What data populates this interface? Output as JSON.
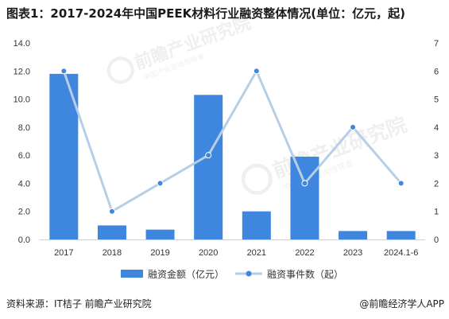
{
  "title": "图表1：2017-2024年中国PEEK材料行业融资整体情况(单位：亿元，起)",
  "source": "资料来源：IT桔子 前瞻产业研究院",
  "brand": "@前瞻经济学人APP",
  "watermark": {
    "name": "前瞻产业研究院",
    "sub": "中国产业咨询领导者"
  },
  "colors": {
    "bar": "#3f86de",
    "line": "#b6cfe6",
    "marker": "#3f86de",
    "axis_text": "#333333"
  },
  "chart_data": {
    "type": "bar",
    "categories": [
      "2017",
      "2018",
      "2019",
      "2020",
      "2021",
      "2022",
      "2023",
      "2024.1-6"
    ],
    "series": [
      {
        "name": "融资金额（亿元）",
        "type": "bar",
        "axis": "left",
        "values": [
          11.8,
          1.0,
          0.7,
          10.3,
          2.0,
          5.9,
          0.6,
          0.6
        ]
      },
      {
        "name": "融资事件数（起）",
        "type": "line",
        "axis": "right",
        "values": [
          6,
          1,
          2,
          3,
          6,
          2,
          4,
          2
        ]
      }
    ],
    "y_left": {
      "min": 0,
      "max": 14,
      "step": 2,
      "tick_labels": [
        "0.0",
        "2.0",
        "4.0",
        "6.0",
        "8.0",
        "10.0",
        "12.0",
        "14.0"
      ]
    },
    "y_right": {
      "min": 0,
      "max": 7,
      "step": 1,
      "tick_labels": [
        "0",
        "1",
        "2",
        "3",
        "4",
        "5",
        "6",
        "7"
      ]
    },
    "grid": false,
    "legend_position": "bottom"
  }
}
